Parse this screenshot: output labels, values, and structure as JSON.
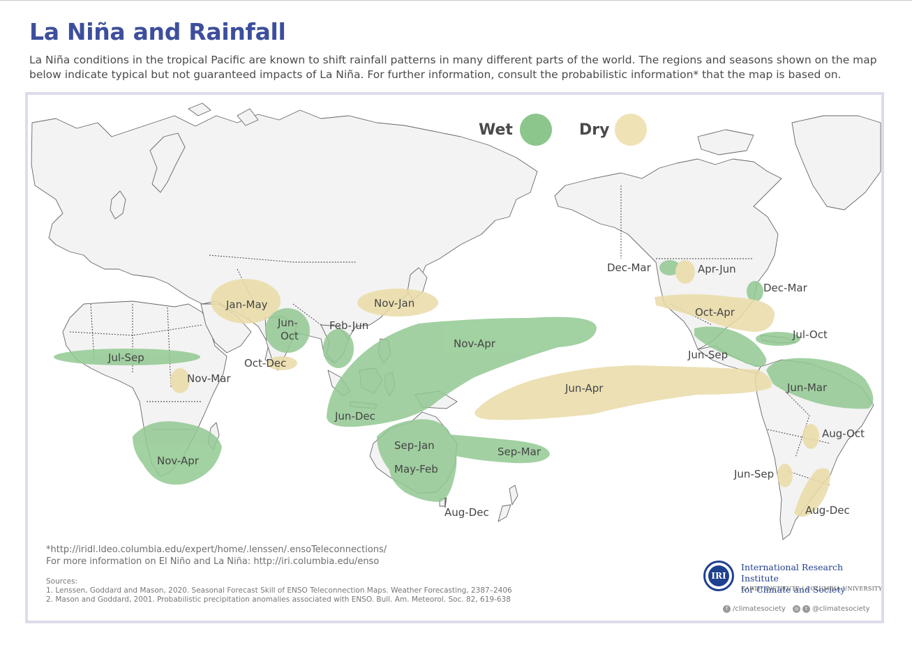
{
  "title": "La Niña and Rainfall",
  "intro": "La Niña conditions in the tropical Pacific are known to shift rainfall patterns in many different parts of the world. The regions and seasons shown on the map below indicate typical but not guaranteed impacts of La Niña. For further information, consult the probabilistic information* that the map is based on.",
  "legend": {
    "wet": {
      "label": "Wet",
      "color": "#8cc68c"
    },
    "dry": {
      "label": "Dry",
      "color": "#efe2b5"
    }
  },
  "colors": {
    "land": "#f3f3f3",
    "coast": "#666666",
    "wet_fill": "#93c993",
    "dry_fill": "#eadca8",
    "title": "#3d4f9c",
    "frame": "#dcdcec"
  },
  "regions": [
    {
      "label": "Jul-Sep",
      "type": "wet"
    },
    {
      "label": "Nov-Mar",
      "type": "dry"
    },
    {
      "label": "Nov-Apr",
      "type": "wet"
    },
    {
      "label": "Jan-May",
      "type": "dry"
    },
    {
      "label": "Jun-Oct",
      "type": "wet"
    },
    {
      "label": "Oct-Dec",
      "type": "dry"
    },
    {
      "label": "Feb-Jun",
      "type": "wet"
    },
    {
      "label": "Nov-Jan",
      "type": "dry"
    },
    {
      "label": "Nov-Apr",
      "type": "wet"
    },
    {
      "label": "Jun-Dec",
      "type": "wet"
    },
    {
      "label": "Sep-Jan",
      "type": "wet"
    },
    {
      "label": "May-Feb",
      "type": "wet"
    },
    {
      "label": "Sep-Mar",
      "type": "wet"
    },
    {
      "label": "Aug-Dec",
      "type": "wet"
    },
    {
      "label": "Jun-Apr",
      "type": "dry"
    },
    {
      "label": "Dec-Mar",
      "type": "wet"
    },
    {
      "label": "Apr-Jun",
      "type": "dry"
    },
    {
      "label": "Dec-Mar",
      "type": "wet"
    },
    {
      "label": "Oct-Apr",
      "type": "dry"
    },
    {
      "label": "Jul-Oct",
      "type": "wet"
    },
    {
      "label": "Jun-Sep",
      "type": "wet"
    },
    {
      "label": "Jun-Mar",
      "type": "wet"
    },
    {
      "label": "Aug-Oct",
      "type": "dry"
    },
    {
      "label": "Jun-Sep",
      "type": "dry"
    },
    {
      "label": "Aug-Dec",
      "type": "dry"
    }
  ],
  "footnote": {
    "line1": "*http://iridl.ldeo.columbia.edu/expert/home/.lenssen/.ensoTeleconnections/",
    "line2": "For more information on El Niño and La Niña: http://iri.columbia.edu/enso"
  },
  "sources": {
    "heading": "Sources:",
    "items": [
      "1. Lenssen, Goddard and Mason, 2020. Seasonal Forecast Skill of ENSO Teleconnection Maps. Weather Forecasting, 2387–2406",
      "2. Mason and Goddard, 2001. Probabilistic precipitation anomalies associated with ENSO. Bull. Am. Meteorol. Soc. 82, 619-638"
    ]
  },
  "logo": {
    "mark": "IRI",
    "name_line1": "International Research Institute",
    "name_line2": "for Climate and Society",
    "subtitle": "EARTH INSTITUTE | COLUMBIA UNIVERSITY"
  },
  "social": {
    "facebook": "/climatesociety",
    "instagram_twitter": "@climatesociety",
    "icons": [
      "facebook-icon",
      "instagram-icon",
      "twitter-icon"
    ]
  }
}
